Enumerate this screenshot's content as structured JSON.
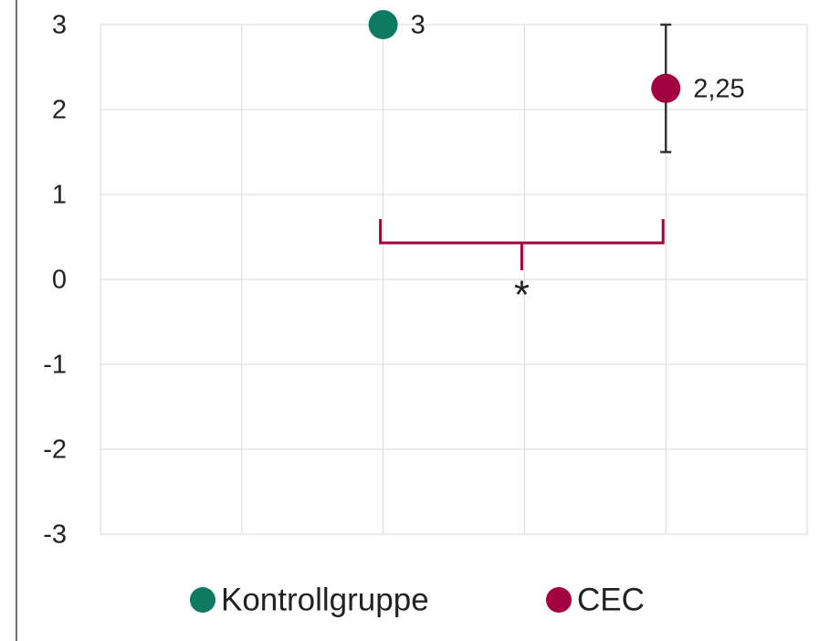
{
  "chart_data": {
    "type": "scatter",
    "series": [
      {
        "name": "Kontrollgruppe",
        "color": "#0e7a62",
        "x": [
          2
        ],
        "values": [
          3
        ],
        "value_labels": [
          "3"
        ]
      },
      {
        "name": "CEC",
        "color": "#a3003f",
        "x": [
          4
        ],
        "values": [
          2.25
        ],
        "value_labels": [
          "2,25"
        ],
        "errors": [
          0.75
        ]
      }
    ],
    "xlim": [
      0,
      5
    ],
    "xticks": [
      0,
      1,
      2,
      3,
      4,
      5
    ],
    "ylim": [
      -3,
      3
    ],
    "yticks": [
      -3,
      -2,
      -1,
      0,
      1,
      2,
      3
    ],
    "grid": true,
    "legend": "bottom",
    "annotations": [
      {
        "text": "*",
        "between": [
          0,
          1
        ],
        "color": "#a3003f"
      }
    ]
  }
}
